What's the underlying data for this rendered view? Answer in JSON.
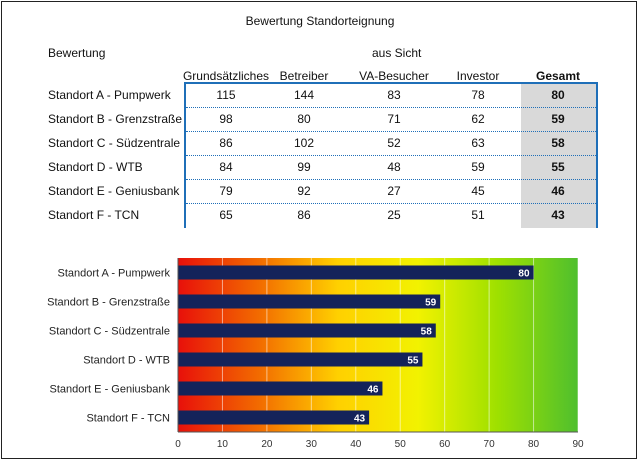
{
  "title": "Bewertung Standorteignung",
  "table": {
    "row_header": "Bewertung",
    "group_header": "aus Sicht",
    "columns": [
      "Grundsätzliches",
      "Betreiber",
      "VA-Besucher",
      "Investor",
      "Gesamt"
    ],
    "rows": [
      {
        "label": "Standort A - Pumpwerk",
        "values": [
          "115",
          "144",
          "83",
          "78",
          "80"
        ]
      },
      {
        "label": "Standort B - Grenzstraße",
        "values": [
          "98",
          "80",
          "71",
          "62",
          "59"
        ]
      },
      {
        "label": "Standort C - Südzentrale",
        "values": [
          "86",
          "102",
          "52",
          "63",
          "58"
        ]
      },
      {
        "label": "Standort D - WTB",
        "values": [
          "84",
          "99",
          "48",
          "59",
          "55"
        ]
      },
      {
        "label": "Standort E - Geniusbank",
        "values": [
          "79",
          "92",
          "27",
          "45",
          "46"
        ]
      },
      {
        "label": "Standort F - TCN",
        "values": [
          "65",
          "86",
          "25",
          "51",
          "43"
        ]
      }
    ]
  },
  "chart_data": {
    "type": "bar",
    "orientation": "horizontal",
    "categories": [
      "Standort A - Pumpwerk",
      "Standort B - Grenzstraße",
      "Standort C - Südzentrale",
      "Standort D - WTB",
      "Standort E - Geniusbank",
      "Standort F - TCN"
    ],
    "values": [
      80,
      59,
      58,
      55,
      46,
      43
    ],
    "data_labels": [
      "80",
      "59",
      "58",
      "55",
      "46",
      "43"
    ],
    "xlim": [
      0,
      90
    ],
    "xticks": [
      "0",
      "10",
      "20",
      "30",
      "40",
      "50",
      "60",
      "70",
      "80",
      "90"
    ],
    "grid": true,
    "background_gradient": [
      "#e8100a",
      "#f26a00",
      "#ffd000",
      "#f2f200",
      "#9ee000",
      "#4fbf2e"
    ],
    "bar_color": "#14235a",
    "label_color": "#ffffff"
  }
}
